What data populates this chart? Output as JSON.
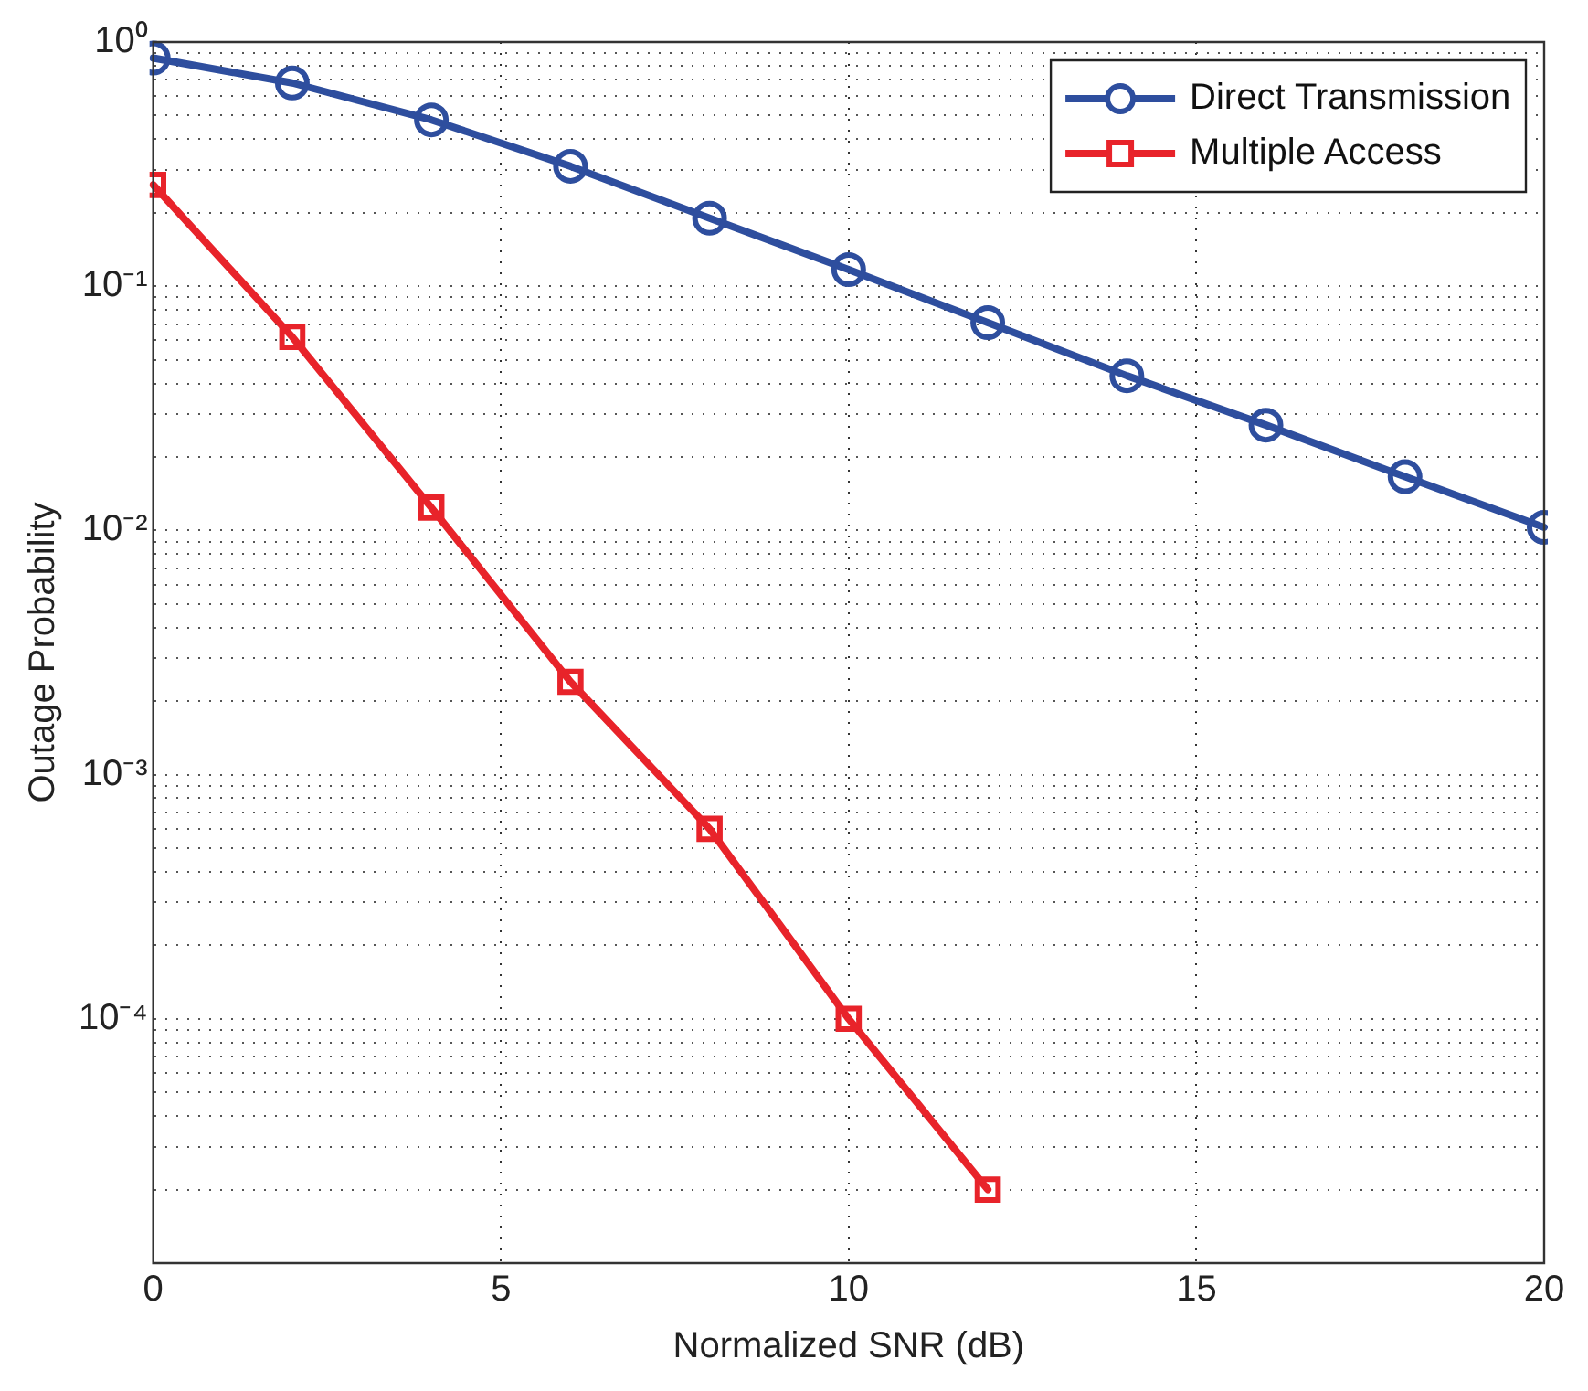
{
  "chart_data": {
    "type": "line",
    "xlabel": "Normalized SNR (dB)",
    "ylabel": "Outage Probability",
    "x": [
      0,
      2,
      4,
      6,
      8,
      10,
      12,
      14,
      16,
      18,
      20
    ],
    "series": [
      {
        "name": "Direct Transmission",
        "color": "#2e4e9e",
        "marker": "circle",
        "values": [
          0.86,
          0.68,
          0.48,
          0.31,
          0.19,
          0.117,
          0.071,
          0.043,
          0.027,
          0.0166,
          0.0103
        ]
      },
      {
        "name": "Multiple Access",
        "color": "#e8232a",
        "marker": "square",
        "values": [
          0.26,
          0.062,
          0.0124,
          0.0024,
          0.0006,
          0.0001,
          2e-05,
          null,
          null,
          null,
          null
        ]
      }
    ],
    "xlim": [
      0,
      20
    ],
    "xticks": [
      0,
      5,
      10,
      15,
      20
    ],
    "ylim": [
      1e-05,
      1
    ],
    "yticks": [
      {
        "value": 1e-05,
        "label": null
      },
      {
        "value": 2e-05,
        "label": null
      },
      {
        "value": 3e-05,
        "label": null
      },
      {
        "value": 4e-05,
        "label": null
      },
      {
        "value": 5e-05,
        "label": null
      },
      {
        "value": 6e-05,
        "label": null
      },
      {
        "value": 7e-05,
        "label": null
      },
      {
        "value": 8e-05,
        "label": null
      },
      {
        "value": 9e-05,
        "label": null
      },
      {
        "value": 0.0001,
        "label": "10⁻⁴"
      },
      {
        "value": 0.0002,
        "label": null
      },
      {
        "value": 0.0003,
        "label": null
      },
      {
        "value": 0.0004,
        "label": null
      },
      {
        "value": 0.0005,
        "label": null
      },
      {
        "value": 0.0006,
        "label": null
      },
      {
        "value": 0.0007,
        "label": null
      },
      {
        "value": 0.0008,
        "label": null
      },
      {
        "value": 0.0009,
        "label": null
      },
      {
        "value": 0.001,
        "label": "10⁻³"
      },
      {
        "value": 0.002,
        "label": null
      },
      {
        "value": 0.003,
        "label": null
      },
      {
        "value": 0.004,
        "label": null
      },
      {
        "value": 0.005,
        "label": null
      },
      {
        "value": 0.006,
        "label": null
      },
      {
        "value": 0.007,
        "label": null
      },
      {
        "value": 0.008,
        "label": null
      },
      {
        "value": 0.009,
        "label": null
      },
      {
        "value": 0.01,
        "label": "10⁻²"
      },
      {
        "value": 0.02,
        "label": null
      },
      {
        "value": 0.03,
        "label": null
      },
      {
        "value": 0.04,
        "label": null
      },
      {
        "value": 0.05,
        "label": null
      },
      {
        "value": 0.06,
        "label": null
      },
      {
        "value": 0.07,
        "label": null
      },
      {
        "value": 0.08,
        "label": null
      },
      {
        "value": 0.09,
        "label": null
      },
      {
        "value": 0.1,
        "label": "10⁻¹"
      },
      {
        "value": 0.2,
        "label": null
      },
      {
        "value": 0.3,
        "label": null
      },
      {
        "value": 0.4,
        "label": null
      },
      {
        "value": 0.5,
        "label": null
      },
      {
        "value": 0.6,
        "label": null
      },
      {
        "value": 0.7,
        "label": null
      },
      {
        "value": 0.8,
        "label": null
      },
      {
        "value": 0.9,
        "label": null
      },
      {
        "value": 1,
        "label": "10⁰"
      }
    ],
    "log": "y",
    "grid": true,
    "legend": "top right",
    "line_style": "solid"
  }
}
